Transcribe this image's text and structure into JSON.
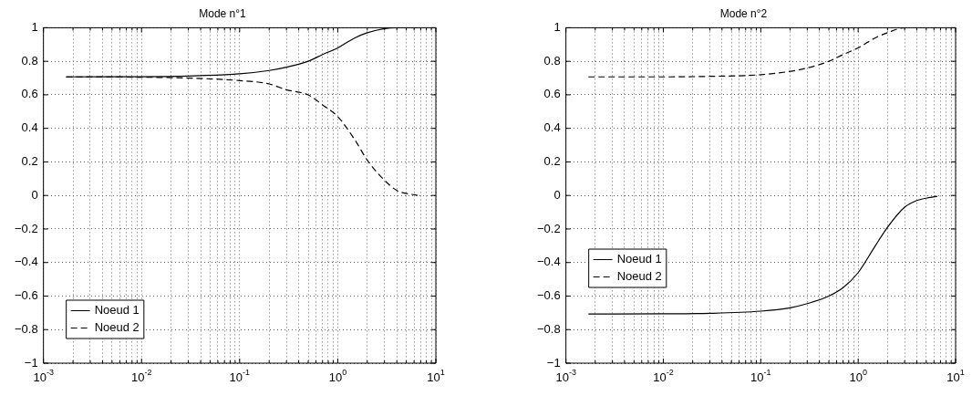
{
  "chart_data": [
    {
      "type": "line",
      "title": "Mode n°1",
      "log": "x",
      "grid": true,
      "legend": "bottom left",
      "marker": "none",
      "xlim": [
        0.001,
        10
      ],
      "ylim": [
        -1,
        1
      ],
      "xticks": [
        {
          "value": 0.001,
          "label": "10$^{-3}$"
        },
        {
          "value": 0.002,
          "label": null
        },
        {
          "value": 0.003,
          "label": null
        },
        {
          "value": 0.004,
          "label": null
        },
        {
          "value": 0.005,
          "label": null
        },
        {
          "value": 0.006,
          "label": null
        },
        {
          "value": 0.007,
          "label": null
        },
        {
          "value": 0.008,
          "label": null
        },
        {
          "value": 0.009,
          "label": null
        },
        {
          "value": 0.01,
          "label": "10$^{-2}$"
        },
        {
          "value": 0.02,
          "label": null
        },
        {
          "value": 0.03,
          "label": null
        },
        {
          "value": 0.04,
          "label": null
        },
        {
          "value": 0.05,
          "label": null
        },
        {
          "value": 0.06,
          "label": null
        },
        {
          "value": 0.07,
          "label": null
        },
        {
          "value": 0.08,
          "label": null
        },
        {
          "value": 0.09,
          "label": null
        },
        {
          "value": 0.1,
          "label": "10$^{-1}$"
        },
        {
          "value": 0.2,
          "label": null
        },
        {
          "value": 0.3,
          "label": null
        },
        {
          "value": 0.4,
          "label": null
        },
        {
          "value": 0.5,
          "label": null
        },
        {
          "value": 0.6,
          "label": null
        },
        {
          "value": 0.7,
          "label": null
        },
        {
          "value": 0.8,
          "label": null
        },
        {
          "value": 0.9,
          "label": null
        },
        {
          "value": 1,
          "label": "10$^{0}$"
        },
        {
          "value": 2,
          "label": null
        },
        {
          "value": 3,
          "label": null
        },
        {
          "value": 4,
          "label": null
        },
        {
          "value": 5,
          "label": null
        },
        {
          "value": 6,
          "label": null
        },
        {
          "value": 7,
          "label": null
        },
        {
          "value": 8,
          "label": null
        },
        {
          "value": 9,
          "label": null
        },
        {
          "value": 10,
          "label": "10$^{1}$"
        }
      ],
      "yticks": [
        -1,
        -0.8,
        -0.6,
        -0.4,
        -0.2,
        0,
        0.2,
        0.4,
        0.6,
        0.8,
        1
      ],
      "x": [
        0.0017,
        0.01,
        0.03,
        0.1,
        0.2,
        0.3,
        0.5,
        0.7,
        1,
        1.5,
        2,
        3,
        4,
        6.5
      ],
      "series": [
        {
          "name": "Noeud 1",
          "color": "#000000",
          "line_style": "solid",
          "values": [
            0.707,
            0.708,
            0.712,
            0.725,
            0.745,
            0.765,
            0.8,
            0.84,
            0.88,
            0.94,
            0.97,
            0.995,
            1,
            1
          ]
        },
        {
          "name": "Noeud 2",
          "color": "#000000",
          "line_style": "dashed",
          "values": [
            0.707,
            0.705,
            0.7,
            0.685,
            0.665,
            0.63,
            0.6,
            0.54,
            0.47,
            0.33,
            0.21,
            0.09,
            0.03,
            0
          ]
        }
      ]
    },
    {
      "type": "line",
      "title": "Mode n°2",
      "log": "x",
      "grid": true,
      "legend": "left",
      "marker": "none",
      "xlim": [
        0.001,
        10
      ],
      "ylim": [
        -1,
        1
      ],
      "xticks": [
        {
          "value": 0.001,
          "label": "10$^{-3}$"
        },
        {
          "value": 0.002,
          "label": null
        },
        {
          "value": 0.003,
          "label": null
        },
        {
          "value": 0.004,
          "label": null
        },
        {
          "value": 0.005,
          "label": null
        },
        {
          "value": 0.006,
          "label": null
        },
        {
          "value": 0.007,
          "label": null
        },
        {
          "value": 0.008,
          "label": null
        },
        {
          "value": 0.009,
          "label": null
        },
        {
          "value": 0.01,
          "label": "10$^{-2}$"
        },
        {
          "value": 0.02,
          "label": null
        },
        {
          "value": 0.03,
          "label": null
        },
        {
          "value": 0.04,
          "label": null
        },
        {
          "value": 0.05,
          "label": null
        },
        {
          "value": 0.06,
          "label": null
        },
        {
          "value": 0.07,
          "label": null
        },
        {
          "value": 0.08,
          "label": null
        },
        {
          "value": 0.09,
          "label": null
        },
        {
          "value": 0.1,
          "label": "10$^{-1}$"
        },
        {
          "value": 0.2,
          "label": null
        },
        {
          "value": 0.3,
          "label": null
        },
        {
          "value": 0.4,
          "label": null
        },
        {
          "value": 0.5,
          "label": null
        },
        {
          "value": 0.6,
          "label": null
        },
        {
          "value": 0.7,
          "label": null
        },
        {
          "value": 0.8,
          "label": null
        },
        {
          "value": 0.9,
          "label": null
        },
        {
          "value": 1,
          "label": "10$^{0}$"
        },
        {
          "value": 2,
          "label": null
        },
        {
          "value": 3,
          "label": null
        },
        {
          "value": 4,
          "label": null
        },
        {
          "value": 5,
          "label": null
        },
        {
          "value": 6,
          "label": null
        },
        {
          "value": 7,
          "label": null
        },
        {
          "value": 8,
          "label": null
        },
        {
          "value": 9,
          "label": null
        },
        {
          "value": 10,
          "label": "10$^{1}$"
        }
      ],
      "yticks": [
        -1,
        -0.8,
        -0.6,
        -0.4,
        -0.2,
        0,
        0.2,
        0.4,
        0.6,
        0.8,
        1
      ],
      "x": [
        0.0017,
        0.01,
        0.03,
        0.1,
        0.2,
        0.3,
        0.5,
        0.7,
        1,
        1.5,
        2,
        3,
        4,
        6.5
      ],
      "series": [
        {
          "name": "Noeud 1",
          "color": "#000000",
          "line_style": "solid",
          "values": [
            -0.707,
            -0.706,
            -0.703,
            -0.69,
            -0.67,
            -0.645,
            -0.6,
            -0.55,
            -0.46,
            -0.3,
            -0.19,
            -0.07,
            -0.03,
            -0.005
          ]
        },
        {
          "name": "Noeud 2",
          "color": "#000000",
          "line_style": "dashed",
          "values": [
            0.707,
            0.707,
            0.71,
            0.72,
            0.74,
            0.76,
            0.8,
            0.84,
            0.88,
            0.94,
            0.97,
            1,
            1,
            1
          ]
        }
      ]
    }
  ]
}
